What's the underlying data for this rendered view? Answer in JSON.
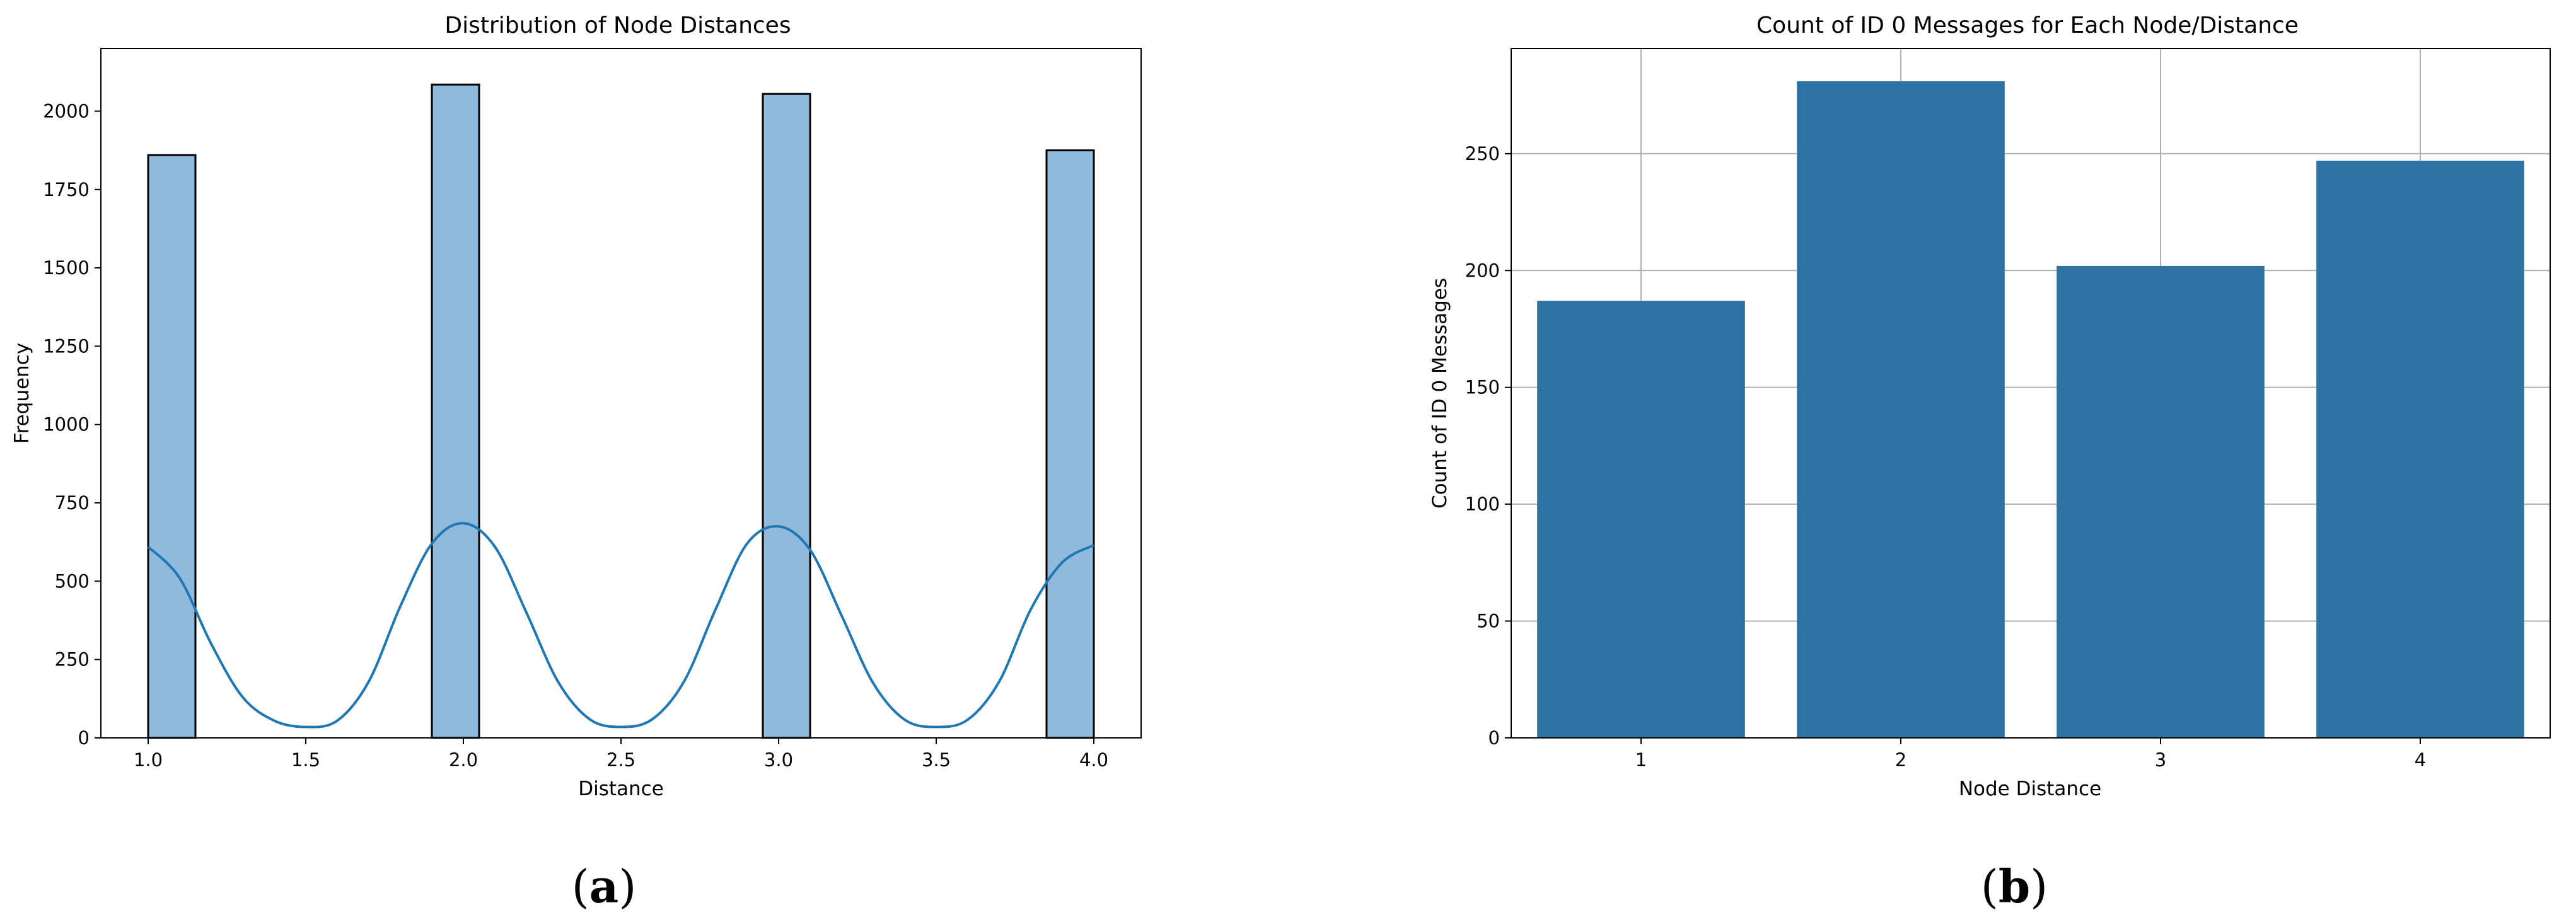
{
  "chart_data": [
    {
      "type": "bar",
      "subtype": "histogram-with-kde",
      "title": "Distribution of Node Distances",
      "xlabel": "Distance",
      "ylabel": "Frequency",
      "xlim": [
        0.85,
        4.15
      ],
      "ylim": [
        0,
        2200
      ],
      "xticks": [
        "1.0",
        "1.5",
        "2.0",
        "2.5",
        "3.0",
        "3.5",
        "4.0"
      ],
      "xtick_values": [
        1.0,
        1.5,
        2.0,
        2.5,
        3.0,
        3.5,
        4.0
      ],
      "yticks": [
        "0",
        "250",
        "500",
        "750",
        "1000",
        "1250",
        "1500",
        "1750",
        "2000"
      ],
      "ytick_values": [
        0,
        250,
        500,
        750,
        1000,
        1250,
        1500,
        1750,
        2000
      ],
      "bins": [
        {
          "x0": 1.0,
          "x1": 1.15,
          "value": 1860
        },
        {
          "x0": 1.9,
          "x1": 2.05,
          "value": 2085
        },
        {
          "x0": 2.95,
          "x1": 3.1,
          "value": 2055
        },
        {
          "x0": 3.85,
          "x1": 4.0,
          "value": 1875
        }
      ],
      "kde": {
        "x": [
          1.0,
          1.1,
          1.2,
          1.3,
          1.4,
          1.5,
          1.6,
          1.7,
          1.8,
          1.9,
          2.0,
          2.1,
          2.2,
          2.3,
          2.4,
          2.5,
          2.6,
          2.7,
          2.8,
          2.9,
          3.0,
          3.1,
          3.2,
          3.3,
          3.4,
          3.5,
          3.6,
          3.7,
          3.8,
          3.9,
          4.0
        ],
        "y": [
          610,
          510,
          300,
          130,
          55,
          35,
          55,
          180,
          420,
          620,
          685,
          610,
          400,
          180,
          60,
          35,
          60,
          180,
          410,
          620,
          675,
          600,
          390,
          175,
          58,
          35,
          58,
          180,
          410,
          560,
          615
        ]
      },
      "bar_color": "#8fbadb",
      "edge_color": "#000000",
      "line_color": "#1f77b4",
      "grid": false,
      "caption": "(a)"
    },
    {
      "type": "bar",
      "title": "Count of ID 0 Messages for Each Node/Distance",
      "xlabel": "Node Distance",
      "ylabel": "Count of ID 0 Messages",
      "categories": [
        "1",
        "2",
        "3",
        "4"
      ],
      "values": [
        187,
        281,
        202,
        247
      ],
      "ylim": [
        0,
        295
      ],
      "yticks": [
        "0",
        "50",
        "100",
        "150",
        "200",
        "250"
      ],
      "ytick_values": [
        0,
        50,
        100,
        150,
        200,
        250
      ],
      "bar_color": "#2e72a2",
      "grid": true,
      "caption": "(b)"
    }
  ]
}
